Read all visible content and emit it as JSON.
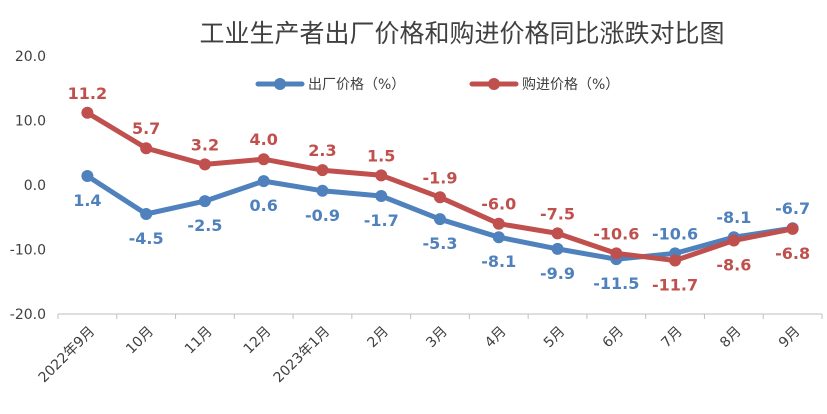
{
  "chart_data": {
    "type": "line",
    "title": "工业生产者出厂价格和购进价格同比涨跌对比图",
    "categories": [
      "2022年9月",
      "10月",
      "11月",
      "12月",
      "2023年1月",
      "2月",
      "3月",
      "4月",
      "5月",
      "6月",
      "7月",
      "8月",
      "9月"
    ],
    "series": [
      {
        "name": "出厂价格（%）",
        "color": "#4f81bd",
        "values": [
          1.4,
          -4.5,
          -2.5,
          0.6,
          -0.9,
          -1.7,
          -5.3,
          -8.1,
          -9.9,
          -11.5,
          -10.6,
          -8.1,
          -6.7
        ],
        "labels": [
          "1.4",
          "-4.5",
          "-2.5",
          "0.6",
          "-0.9",
          "-1.7",
          "-5.3",
          "-8.1",
          "-9.9",
          "-11.5",
          "-10.6",
          "-8.1",
          "-6.7"
        ]
      },
      {
        "name": "购进价格（%）",
        "color": "#c0504d",
        "values": [
          11.2,
          5.7,
          3.2,
          4.0,
          2.3,
          1.5,
          -1.9,
          -6.0,
          -7.5,
          -10.6,
          -11.7,
          -8.6,
          -6.8
        ],
        "labels": [
          "11.2",
          "5.7",
          "3.2",
          "4.0",
          "2.3",
          "1.5",
          "-1.9",
          "-6.0",
          "-7.5",
          "-10.6",
          "-11.7",
          "-8.6",
          "-6.8"
        ]
      }
    ],
    "ylim": [
      -20,
      20
    ],
    "yticks": [
      "20.0",
      "10.0",
      "0.0",
      "-10.0",
      "-20.0"
    ],
    "xlabel": "",
    "ylabel": "",
    "grid": false,
    "legend_position": "top-center"
  }
}
